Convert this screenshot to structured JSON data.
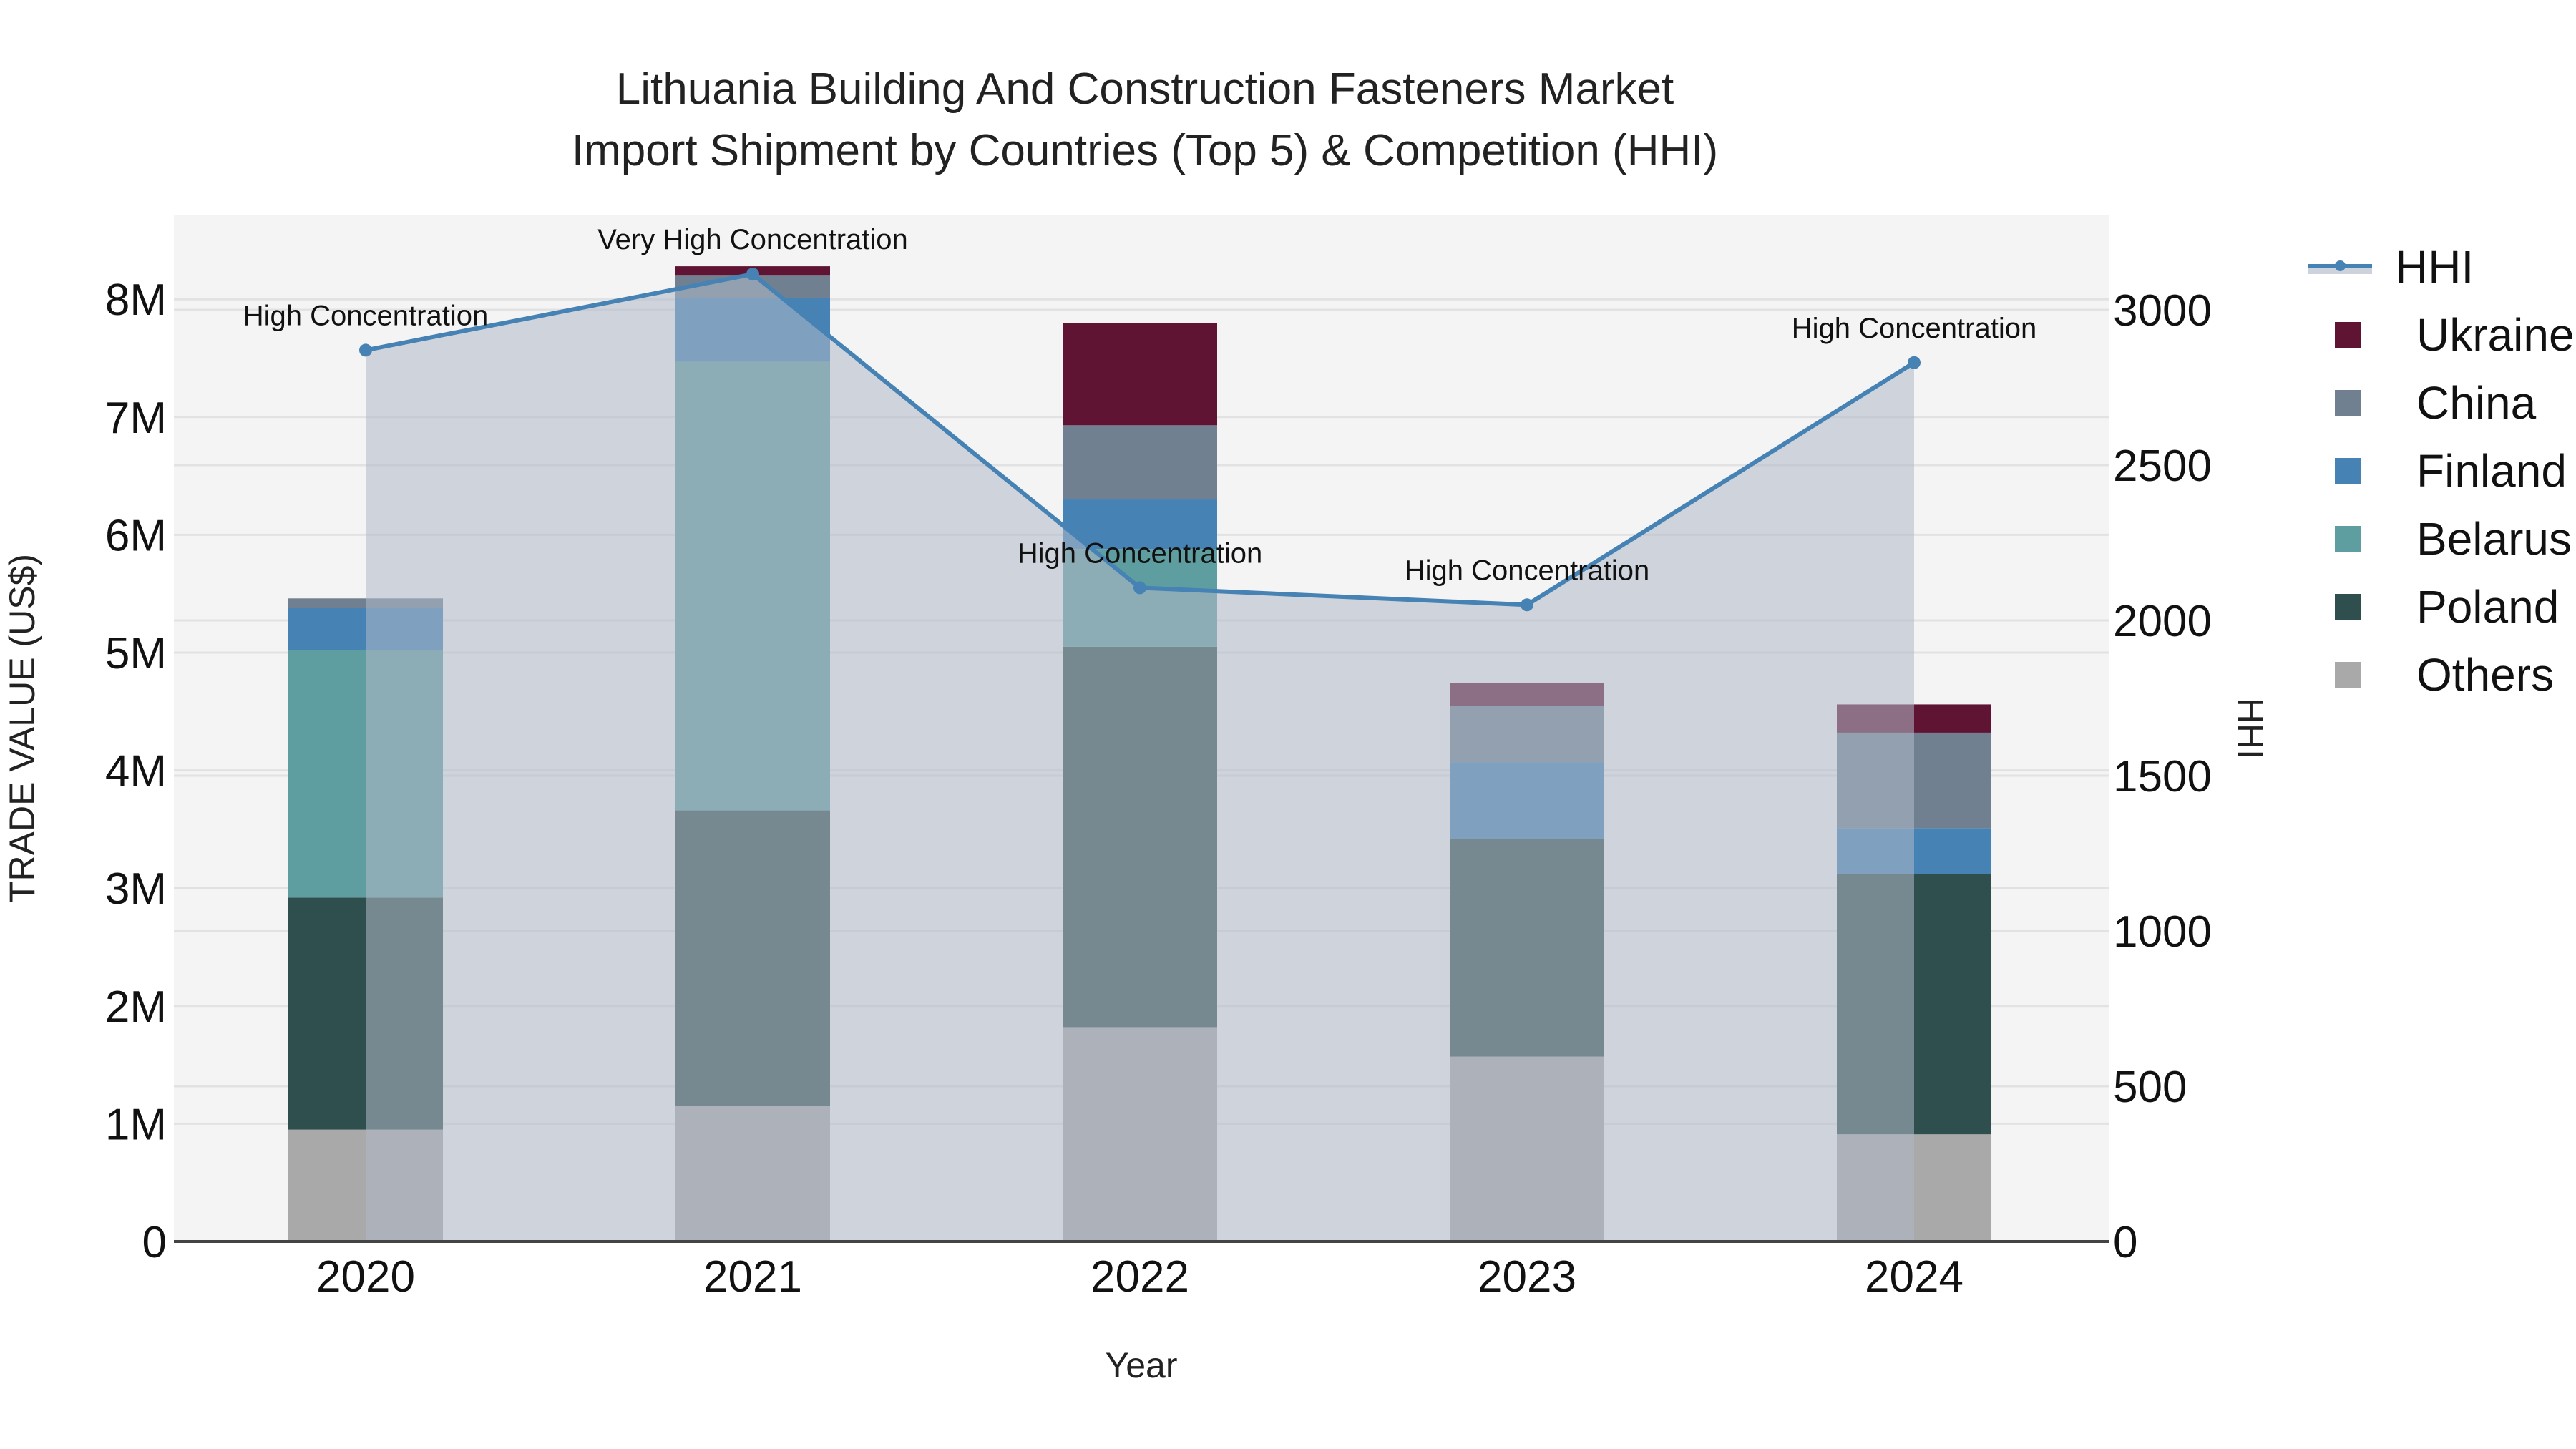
{
  "title": [
    "Lithuania Building And Construction Fasteners Market",
    "Import Shipment by Countries (Top 5) & Competition (HHI)"
  ],
  "chart_data": {
    "type": "bar",
    "stacked": true,
    "title": "Lithuania Building And Construction Fasteners Market Import Shipment by Countries (Top 5) & Competition (HHI)",
    "xlabel": "Year",
    "ylabel": "TRADE VALUE (US$)",
    "y2label": "HHI",
    "categories": [
      "2020",
      "2021",
      "2022",
      "2023",
      "2024"
    ],
    "ylim": [
      0,
      8700000
    ],
    "y2lim": [
      0,
      3300
    ],
    "yticks": [
      "0",
      "1M",
      "2M",
      "3M",
      "4M",
      "5M",
      "6M",
      "7M",
      "8M"
    ],
    "y2ticks": [
      "0",
      "500",
      "1000",
      "1500",
      "2000",
      "2500",
      "3000"
    ],
    "grid": true,
    "legend_position": "right",
    "series": [
      {
        "name": "Others",
        "color": "#a9a9a9",
        "values": [
          950000,
          1150000,
          1820000,
          1570000,
          910000
        ]
      },
      {
        "name": "Poland",
        "color": "#2f4f4f",
        "values": [
          1970000,
          2510000,
          3230000,
          1850000,
          2210000
        ]
      },
      {
        "name": "Belarus",
        "color": "#5f9ea0",
        "values": [
          2100000,
          3810000,
          830000,
          0,
          0
        ]
      },
      {
        "name": "Finland",
        "color": "#4682b4",
        "values": [
          360000,
          540000,
          420000,
          650000,
          390000
        ]
      },
      {
        "name": "China",
        "color": "#708090",
        "values": [
          80000,
          190000,
          630000,
          480000,
          810000
        ]
      },
      {
        "name": "Ukraine",
        "color": "#601434",
        "values": [
          0,
          80000,
          870000,
          190000,
          240000
        ]
      }
    ],
    "hhi": {
      "name": "HHI",
      "color": "#4682b4",
      "values": [
        2870,
        3115,
        2105,
        2050,
        2830
      ]
    },
    "annotations": [
      "High Concentration",
      "Very High Concentration",
      "High Concentration",
      "High Concentration",
      "High Concentration"
    ]
  },
  "legend": [
    "HHI",
    "Ukraine",
    "China",
    "Finland",
    "Belarus",
    "Poland",
    "Others"
  ]
}
